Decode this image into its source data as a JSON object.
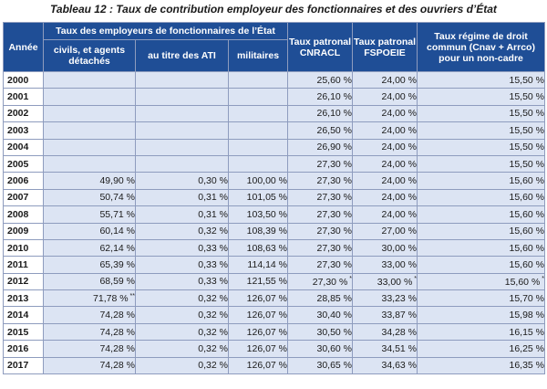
{
  "caption": "Tableau 12 : Taux de contribution employeur des fonctionnaires et des ouvriers d’État",
  "headers": {
    "annee": "Année",
    "group": "Taux des employeurs de fonctionnaires de l’État",
    "civils": "civils, et agents détachés",
    "ati": "au titre des ATI",
    "militaires": "militaires",
    "cnracl": "Taux patronal CNRACL",
    "fspoeie": "Taux patronal FSPOEIE",
    "regime": "Taux régime de droit commun (Cnav + Arrco) pour un non-cadre"
  },
  "rows": [
    {
      "year": "2000",
      "civils": "",
      "ati": "",
      "mil": "",
      "cnracl": "25,60 %",
      "fspoeie": "24,00 %",
      "regime": "15,50 %"
    },
    {
      "year": "2001",
      "civils": "",
      "ati": "",
      "mil": "",
      "cnracl": "26,10 %",
      "fspoeie": "24,00 %",
      "regime": "15,50 %"
    },
    {
      "year": "2002",
      "civils": "",
      "ati": "",
      "mil": "",
      "cnracl": "26,10 %",
      "fspoeie": "24,00 %",
      "regime": "15,50 %"
    },
    {
      "year": "2003",
      "civils": "",
      "ati": "",
      "mil": "",
      "cnracl": "26,50 %",
      "fspoeie": "24,00 %",
      "regime": "15,50 %"
    },
    {
      "year": "2004",
      "civils": "",
      "ati": "",
      "mil": "",
      "cnracl": "26,90 %",
      "fspoeie": "24,00 %",
      "regime": "15,50 %"
    },
    {
      "year": "2005",
      "civils": "",
      "ati": "",
      "mil": "",
      "cnracl": "27,30 %",
      "fspoeie": "24,00 %",
      "regime": "15,50 %"
    },
    {
      "year": "2006",
      "civils": "49,90 %",
      "ati": "0,30 %",
      "mil": "100,00 %",
      "cnracl": "27,30 %",
      "fspoeie": "24,00 %",
      "regime": "15,60 %"
    },
    {
      "year": "2007",
      "civils": "50,74 %",
      "ati": "0,31 %",
      "mil": "101,05 %",
      "cnracl": "27,30 %",
      "fspoeie": "24,00 %",
      "regime": "15,60 %"
    },
    {
      "year": "2008",
      "civils": "55,71 %",
      "ati": "0,31 %",
      "mil": "103,50 %",
      "cnracl": "27,30 %",
      "fspoeie": "24,00 %",
      "regime": "15,60 %"
    },
    {
      "year": "2009",
      "civils": "60,14 %",
      "ati": "0,32 %",
      "mil": "108,39 %",
      "cnracl": "27,30 %",
      "fspoeie": "27,00 %",
      "regime": "15,60 %"
    },
    {
      "year": "2010",
      "civils": "62,14 %",
      "ati": "0,33 %",
      "mil": "108,63 %",
      "cnracl": "27,30 %",
      "fspoeie": "30,00 %",
      "regime": "15,60 %"
    },
    {
      "year": "2011",
      "civils": "65,39 %",
      "ati": "0,33 %",
      "mil": "114,14 %",
      "cnracl": "27,30 %",
      "fspoeie": "33,00 %",
      "regime": "15,60 %"
    },
    {
      "year": "2012",
      "civils": "68,59 %",
      "ati": "0,33 %",
      "mil": "121,55 %",
      "cnracl": "27,30 %",
      "cnracl_note": "*",
      "fspoeie": "33,00 %",
      "fspoeie_note": "*",
      "regime": "15,60 %",
      "regime_note": "*"
    },
    {
      "year": "2013",
      "civils": "71,78 %",
      "civils_note": "**",
      "ati": "0,32 %",
      "mil": "126,07 %",
      "cnracl": "28,85 %",
      "fspoeie": "33,23 %",
      "regime": "15,70 %"
    },
    {
      "year": "2014",
      "civils": "74,28 %",
      "ati": "0,32 %",
      "mil": "126,07 %",
      "cnracl": "30,40 %",
      "fspoeie": "33,87 %",
      "regime": "15,98 %"
    },
    {
      "year": "2015",
      "civils": "74,28 %",
      "ati": "0,32 %",
      "mil": "126,07 %",
      "cnracl": "30,50 %",
      "fspoeie": "34,28 %",
      "regime": "16,15 %"
    },
    {
      "year": "2016",
      "civils": "74,28 %",
      "ati": "0,32 %",
      "mil": "126,07 %",
      "cnracl": "30,60 %",
      "fspoeie": "34,51 %",
      "regime": "16,25 %"
    },
    {
      "year": "2017",
      "civils": "74,28 %",
      "ati": "0,32 %",
      "mil": "126,07 %",
      "cnracl": "30,65 %",
      "fspoeie": "34,63 %",
      "regime": "16,35 %"
    }
  ],
  "colors": {
    "header_bg": "#1f4e96",
    "cell_bg": "#dce4f3",
    "border": "#8e9cbe"
  }
}
